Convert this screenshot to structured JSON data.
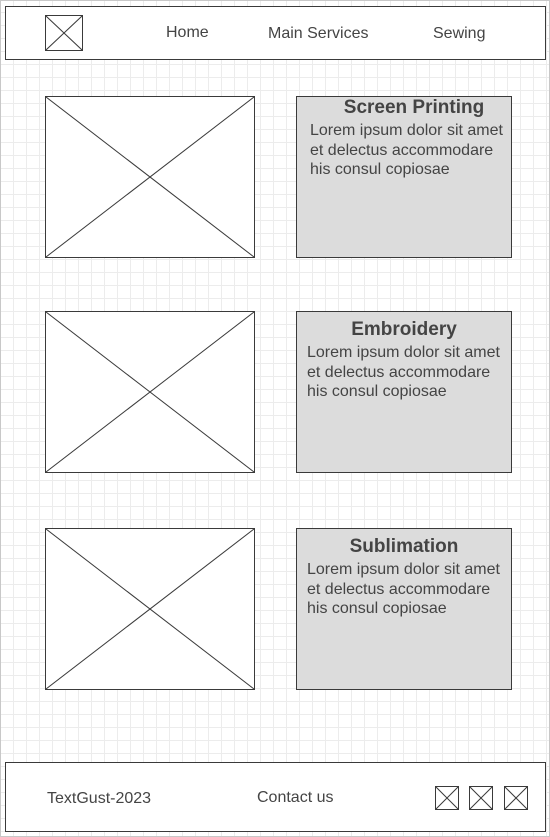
{
  "header": {
    "logo_icon": "image-placeholder-icon",
    "nav": {
      "home": "Home",
      "main_services": "Main Services",
      "sewing": "Sewing"
    }
  },
  "services": [
    {
      "title": "Screen Printing",
      "body": "Lorem ipsum dolor sit amet et delectus accommodare his consul copiosae",
      "image_icon": "image-placeholder-icon"
    },
    {
      "title": "Embroidery",
      "body": "Lorem ipsum dolor sit amet et delectus accommodare his consul copiosae",
      "image_icon": "image-placeholder-icon"
    },
    {
      "title": "Sublimation",
      "body": "Lorem ipsum dolor sit amet et delectus accommodare his consul copiosae",
      "image_icon": "image-placeholder-icon"
    }
  ],
  "footer": {
    "copyright": "TextGust-2023",
    "contact": "Contact us",
    "social_icons": [
      "image-placeholder-icon",
      "image-placeholder-icon",
      "image-placeholder-icon"
    ]
  },
  "colors": {
    "background": "#ffffff",
    "grid": "#ececec",
    "card_fill": "#dcdcdc",
    "stroke": "#3a3a3a",
    "text": "#444444"
  }
}
